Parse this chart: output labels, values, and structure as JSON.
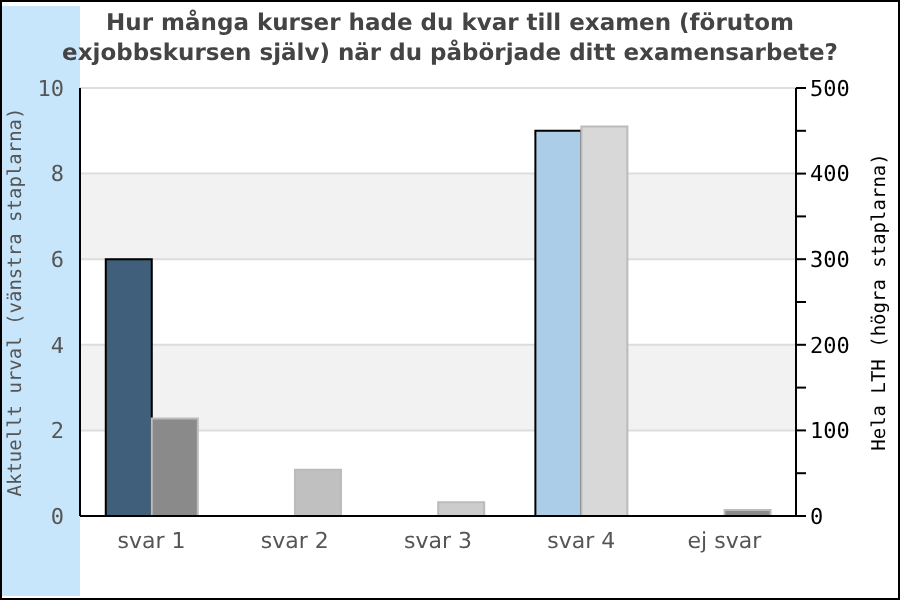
{
  "chart_data": {
    "type": "bar",
    "title": "Hur många kurser hade du kvar till examen (förutom exjobbskursen själv) när du påbörjade ditt examensarbete?",
    "ylabel": "Aktuellt urval (vänstra staplarna)",
    "y2label": "Hela LTH (högra staplarna)",
    "categories": [
      "svar 1",
      "svar 2",
      "svar 3",
      "svar 4",
      "ej svar"
    ],
    "series": [
      {
        "colors": [
          "#3f5f7a",
          "#3f5f7a",
          "#3f5f7a",
          "#abcde8",
          "#3f5f7a"
        ],
        "values": [
          6,
          0,
          0,
          9,
          0
        ]
      },
      {
        "axis": "y2",
        "colors": [
          "#8a8a8a",
          "#c0c0c0",
          "#cccccc",
          "#d8d8d8",
          "#8a8a8a"
        ],
        "values": [
          114,
          54,
          16,
          455,
          7
        ]
      }
    ],
    "ylim": [
      0,
      10
    ],
    "yticks": [
      0,
      2,
      4,
      6,
      8,
      10
    ],
    "y2lim": [
      0,
      500
    ],
    "y2ticks": [
      0,
      {
        "value": 50,
        "label": null
      },
      100,
      {
        "value": 150,
        "label": null
      },
      200,
      {
        "value": 250,
        "label": null
      },
      300,
      {
        "value": 350,
        "label": null
      },
      400,
      {
        "value": 450,
        "label": null
      },
      500
    ],
    "grid": "y"
  }
}
